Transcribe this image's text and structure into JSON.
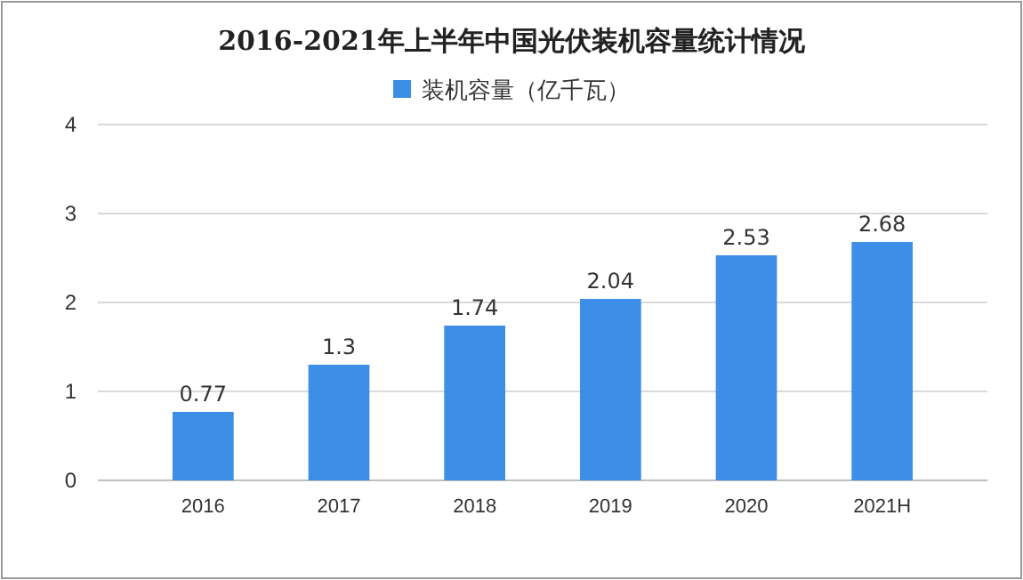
{
  "chart_data": {
    "type": "bar",
    "title": "2016-2021年上半年中国光伏装机容量统计情况",
    "categories": [
      "2016",
      "2017",
      "2018",
      "2019",
      "2020",
      "2021H"
    ],
    "series": [
      {
        "name": "装机容量（亿千瓦）",
        "color": "#3d8ee6",
        "values": [
          0.77,
          1.3,
          1.74,
          2.04,
          2.53,
          2.68
        ]
      }
    ],
    "ylim": [
      0,
      4
    ],
    "yticks": [
      0,
      1,
      2,
      3,
      4
    ],
    "grid": "y",
    "legend": "top",
    "data_labels": true
  }
}
